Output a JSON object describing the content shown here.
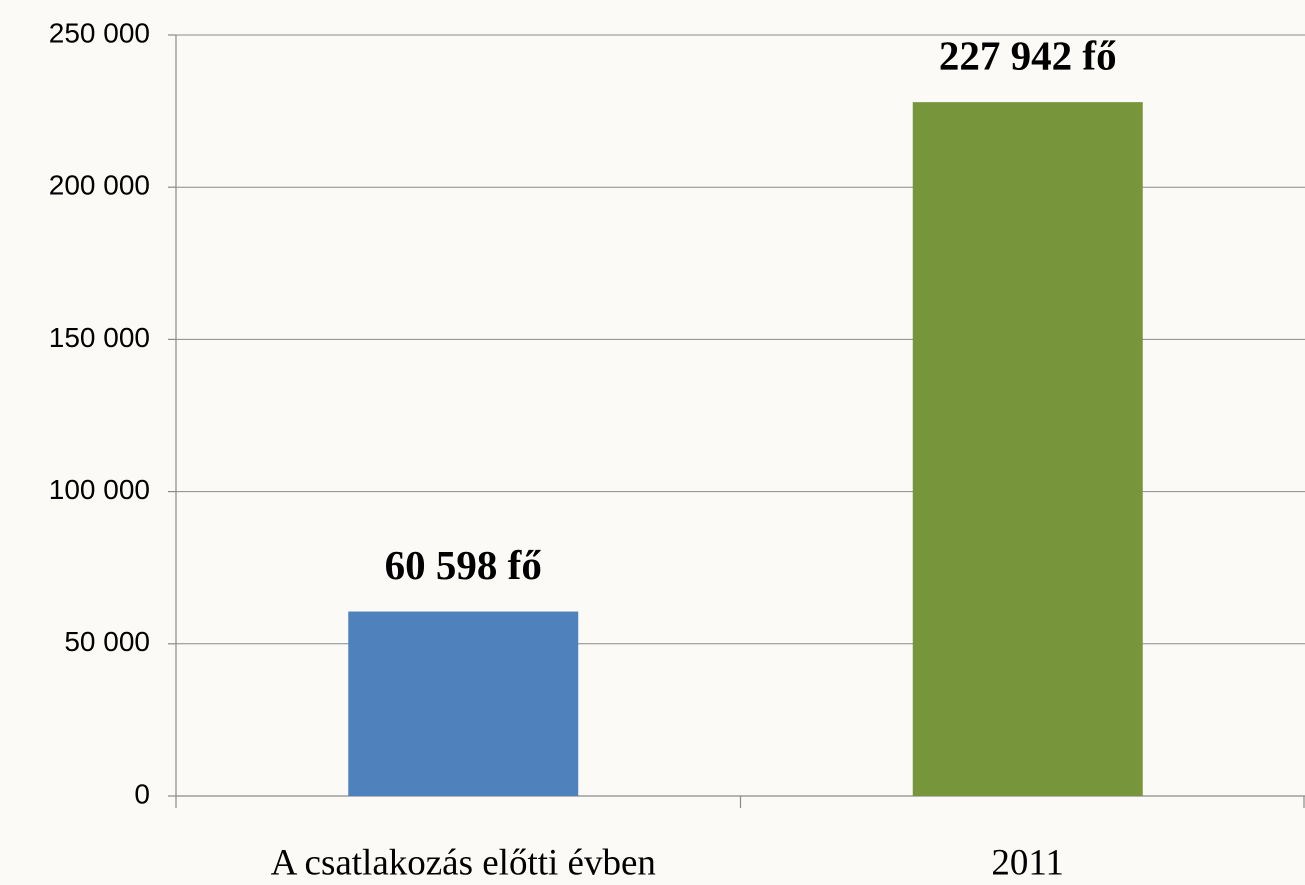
{
  "chart_data": {
    "type": "bar",
    "categories": [
      "A csatlakozás előtti évben",
      "2011"
    ],
    "values": [
      60598,
      227942
    ],
    "value_labels": [
      "60 598 fő",
      "227 942 fő"
    ],
    "colors": [
      "#4f81bd",
      "#77963c"
    ],
    "ylim": [
      0,
      250000
    ],
    "yticks": [
      0,
      {
        "value": 50000,
        "label": "50 000"
      },
      {
        "value": 100000,
        "label": "100 000"
      },
      {
        "value": 150000,
        "label": "150 000"
      },
      {
        "value": 200000,
        "label": "200 000"
      },
      {
        "value": 250000,
        "label": "250 000"
      }
    ],
    "grid": true
  }
}
